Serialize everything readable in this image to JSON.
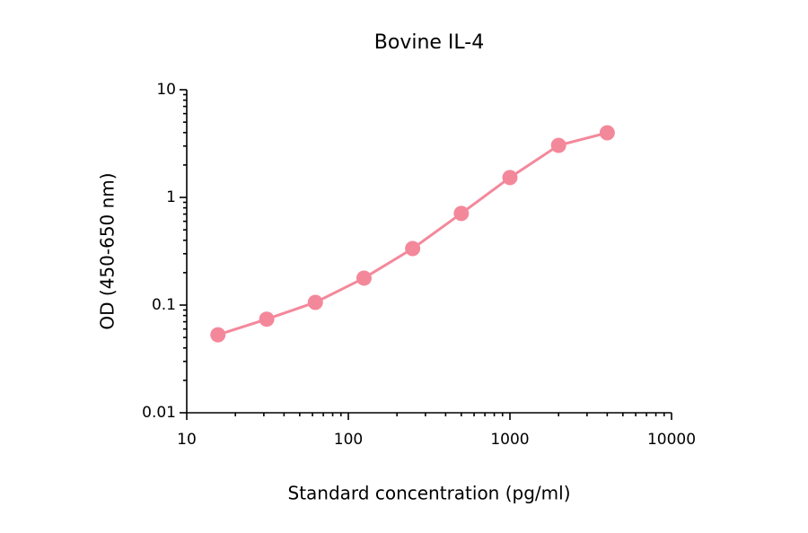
{
  "chart_data": {
    "type": "line",
    "title": "Bovine IL-4",
    "x_label": "Standard concentration (pg/ml)",
    "y_label": "OD (450-650 nm)",
    "x": [
      15.6,
      31.25,
      62.5,
      125,
      250,
      500,
      1000,
      2000,
      4000
    ],
    "series": [
      {
        "name": "Bovine IL-4",
        "color": "#f4889b",
        "values": [
          0.053,
          0.074,
          0.106,
          0.178,
          0.335,
          0.71,
          1.53,
          3.04,
          3.98
        ]
      }
    ],
    "x_scale": "log",
    "y_scale": "log",
    "xlim": [
      10,
      10000
    ],
    "ylim": [
      0.01,
      10
    ],
    "xticks": [
      10,
      100,
      1000,
      10000
    ],
    "yticks": [
      0.01,
      0.1,
      1,
      10
    ],
    "grid": false
  }
}
